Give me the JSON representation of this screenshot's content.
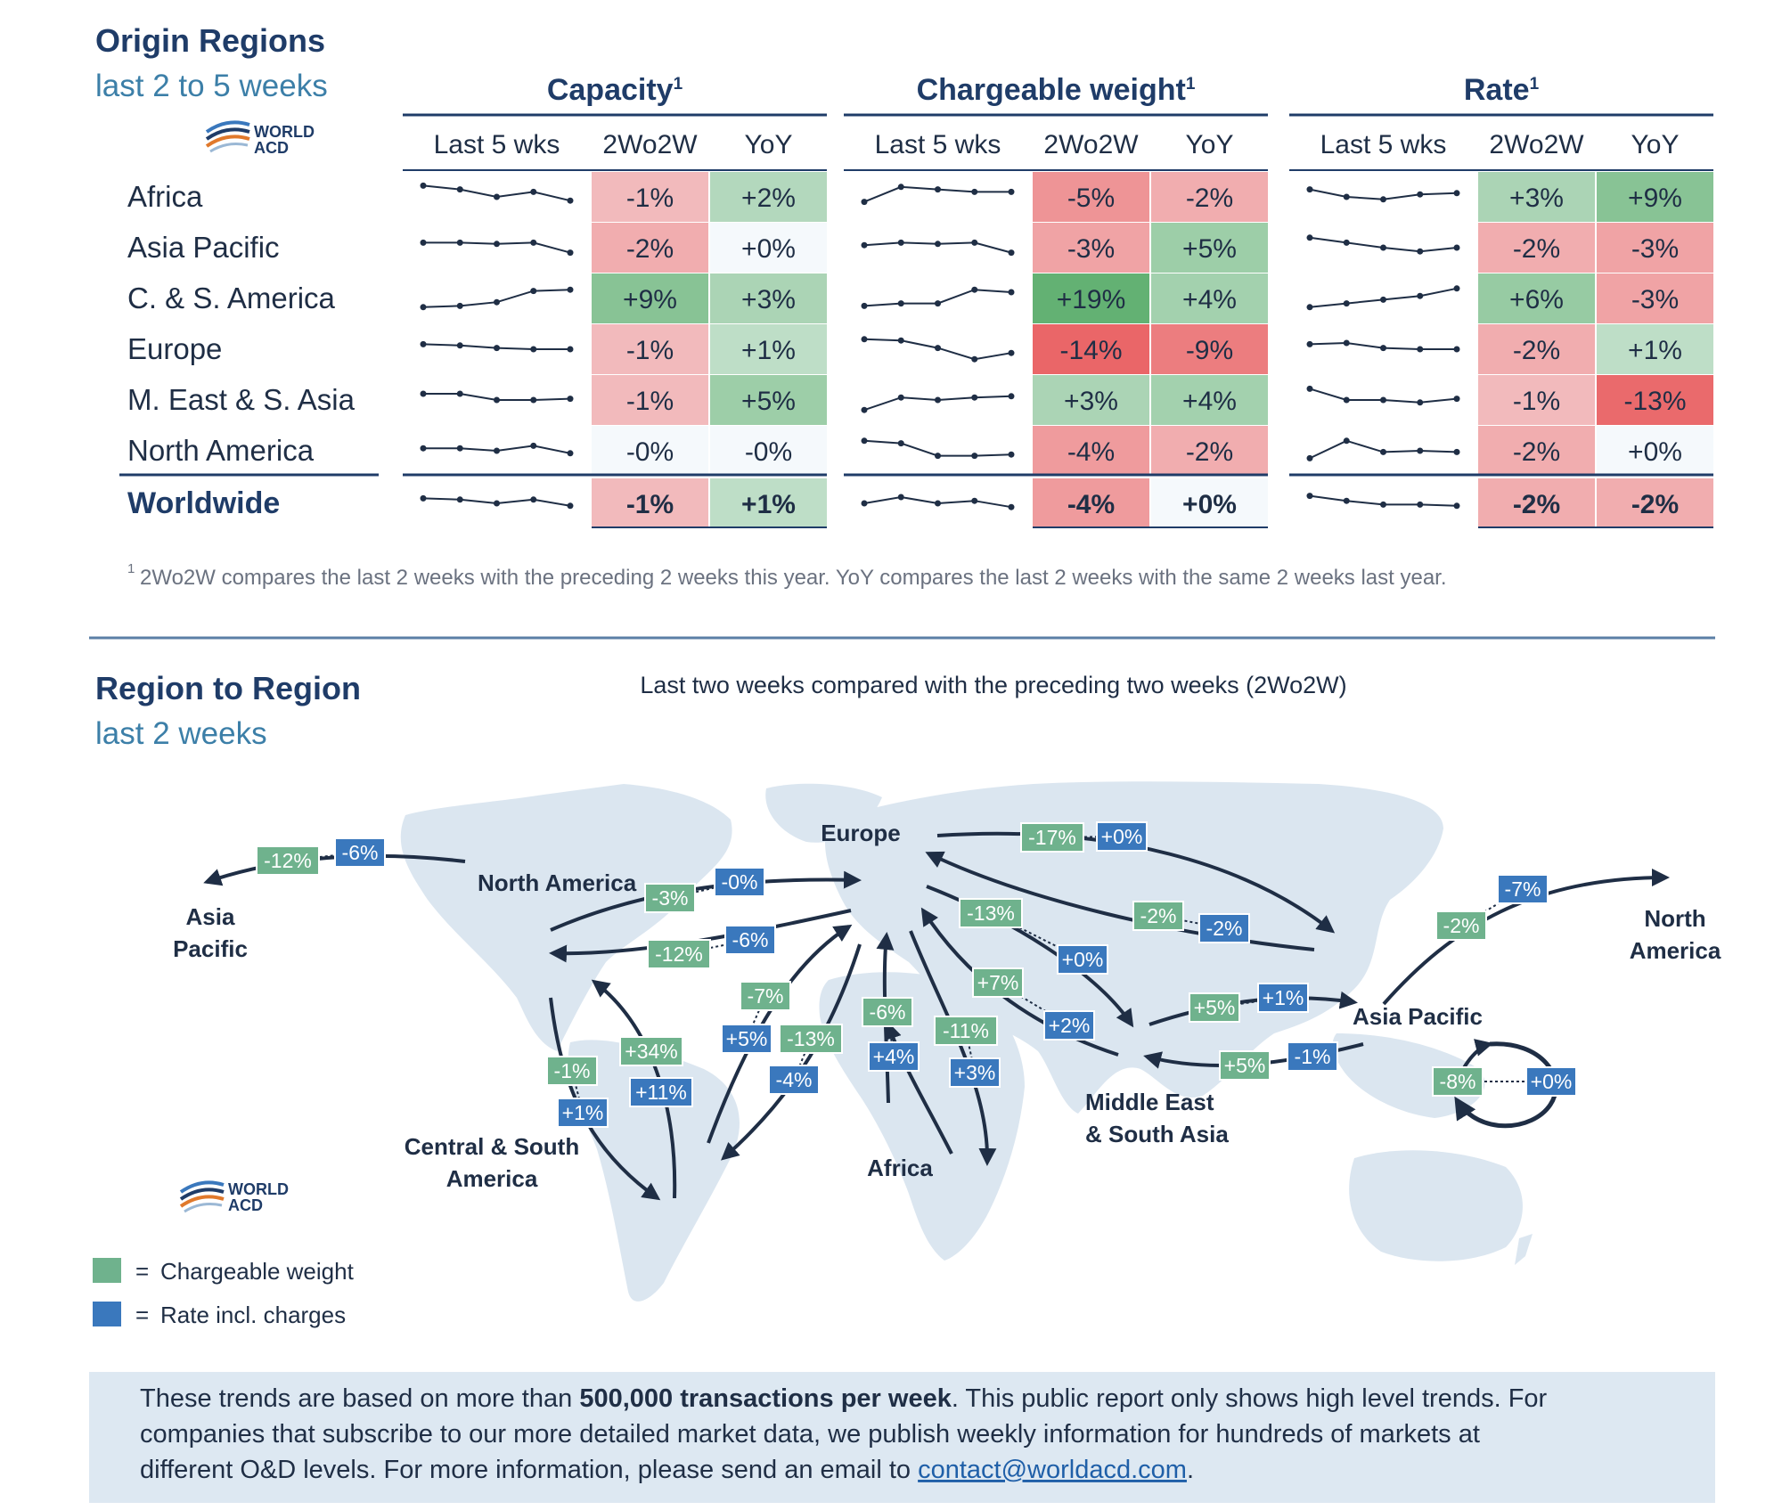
{
  "top": {
    "title": "Origin Regions",
    "subtitle": "last 2 to 5 weeks",
    "logo_text": [
      "WORLD",
      "ACD"
    ],
    "group_headers": [
      "Capacity",
      "Chargeable weight",
      "Rate"
    ],
    "group_superscript": "1",
    "col_headers": [
      "Last 5 wks",
      "2Wo2W",
      "YoY"
    ],
    "footnote_mark": "1",
    "footnote": "2Wo2W compares the last 2 weeks with the preceding 2 weeks this year. YoY compares the last 2 weeks with the same 2 weeks last year."
  },
  "colors": {
    "title": "#1f3c68",
    "subtitle": "#3c7fa8",
    "green_chargeable": "#6fb28d",
    "blue_rate": "#3a78bd",
    "map_land": "#dbe6f0",
    "arrow": "#1f2e45",
    "banner_bg": "#dde8f2",
    "link": "#1f5fa8"
  },
  "chart_data": [
    {
      "type": "table",
      "title": "Origin Regions",
      "subtitle": "last 2 to 5 weeks",
      "groups": [
        "Capacity",
        "Chargeable weight",
        "Rate"
      ],
      "columns": [
        "Last 5 wks",
        "2Wo2W",
        "YoY"
      ],
      "rows": [
        {
          "region": "Africa",
          "capacity": {
            "trend": [
              0.95,
              0.8,
              0.5,
              0.7,
              0.35
            ],
            "w2w": "-1%",
            "yoy": "+2%"
          },
          "chargeable": {
            "trend": [
              0.3,
              0.9,
              0.8,
              0.7,
              0.7
            ],
            "w2w": "-5%",
            "yoy": "-2%"
          },
          "rate": {
            "trend": [
              0.8,
              0.5,
              0.4,
              0.6,
              0.65
            ],
            "w2w": "+3%",
            "yoy": "+9%"
          }
        },
        {
          "region": "Asia Pacific",
          "capacity": {
            "trend": [
              0.7,
              0.7,
              0.65,
              0.7,
              0.3
            ],
            "w2w": "-2%",
            "yoy": "+0%"
          },
          "chargeable": {
            "trend": [
              0.6,
              0.7,
              0.65,
              0.7,
              0.3
            ],
            "w2w": "-3%",
            "yoy": "+5%"
          },
          "rate": {
            "trend": [
              0.9,
              0.7,
              0.5,
              0.35,
              0.5
            ],
            "w2w": "-2%",
            "yoy": "-3%"
          }
        },
        {
          "region": "C. & S. America",
          "capacity": {
            "trend": [
              0.15,
              0.2,
              0.35,
              0.8,
              0.85
            ],
            "w2w": "+9%",
            "yoy": "+3%"
          },
          "chargeable": {
            "trend": [
              0.2,
              0.3,
              0.3,
              0.85,
              0.75
            ],
            "w2w": "+19%",
            "yoy": "+4%"
          },
          "rate": {
            "trend": [
              0.15,
              0.3,
              0.45,
              0.6,
              0.9
            ],
            "w2w": "+6%",
            "yoy": "-3%"
          }
        },
        {
          "region": "Europe",
          "capacity": {
            "trend": [
              0.7,
              0.65,
              0.55,
              0.5,
              0.5
            ],
            "w2w": "-1%",
            "yoy": "+1%"
          },
          "chargeable": {
            "trend": [
              0.9,
              0.85,
              0.55,
              0.1,
              0.35
            ],
            "w2w": "-14%",
            "yoy": "-9%"
          },
          "rate": {
            "trend": [
              0.7,
              0.75,
              0.55,
              0.5,
              0.5
            ],
            "w2w": "-2%",
            "yoy": "+1%"
          }
        },
        {
          "region": "M. East & S. Asia",
          "capacity": {
            "trend": [
              0.75,
              0.75,
              0.5,
              0.5,
              0.55
            ],
            "w2w": "-1%",
            "yoy": "+5%"
          },
          "chargeable": {
            "trend": [
              0.1,
              0.6,
              0.5,
              0.6,
              0.65
            ],
            "w2w": "+3%",
            "yoy": "+4%"
          },
          "rate": {
            "trend": [
              0.95,
              0.5,
              0.5,
              0.4,
              0.55
            ],
            "w2w": "-1%",
            "yoy": "-13%"
          }
        },
        {
          "region": "North America",
          "capacity": {
            "trend": [
              0.6,
              0.6,
              0.5,
              0.7,
              0.4
            ],
            "w2w": "-0%",
            "yoy": "-0%"
          },
          "chargeable": {
            "trend": [
              0.9,
              0.8,
              0.3,
              0.3,
              0.35
            ],
            "w2w": "-4%",
            "yoy": "-2%"
          },
          "rate": {
            "trend": [
              0.2,
              0.9,
              0.45,
              0.5,
              0.45
            ],
            "w2w": "-2%",
            "yoy": "+0%"
          }
        },
        {
          "region": "Worldwide",
          "capacity": {
            "trend": [
              0.7,
              0.65,
              0.5,
              0.65,
              0.4
            ],
            "w2w": "-1%",
            "yoy": "+1%"
          },
          "chargeable": {
            "trend": [
              0.5,
              0.75,
              0.5,
              0.6,
              0.35
            ],
            "w2w": "-4%",
            "yoy": "+0%"
          },
          "rate": {
            "trend": [
              0.8,
              0.6,
              0.45,
              0.45,
              0.4
            ],
            "w2w": "-2%",
            "yoy": "-2%"
          }
        }
      ]
    },
    {
      "type": "flow_map",
      "title": "Region to Region",
      "subtitle": "last 2 weeks",
      "description": "Last two weeks compared with the preceding two weeks (2Wo2W)",
      "series": [
        "Chargeable weight",
        "Rate incl. charges"
      ],
      "regions": [
        "North America",
        "Europe",
        "Asia Pacific",
        "Africa",
        "Central & South America",
        "Middle East & South Asia"
      ],
      "flows": [
        {
          "from": "North America",
          "to": "Asia Pacific",
          "chargeable": "-12%",
          "rate": "-6%"
        },
        {
          "from": "North America",
          "to": "Europe",
          "chargeable": "-3%",
          "rate": "-0%"
        },
        {
          "from": "Europe",
          "to": "North America",
          "chargeable": "-12%",
          "rate": "-6%"
        },
        {
          "from": "Europe",
          "to": "Asia Pacific",
          "chargeable": "-17%",
          "rate": "+0%"
        },
        {
          "from": "Asia Pacific",
          "to": "Europe",
          "chargeable": "-2%",
          "rate": "-2%"
        },
        {
          "from": "Europe",
          "to": "Middle East & South Asia",
          "chargeable": "-13%",
          "rate": "+0%"
        },
        {
          "from": "Middle East & South Asia",
          "to": "Europe",
          "chargeable": "+7%",
          "rate": "+2%"
        },
        {
          "from": "Middle East & South Asia",
          "to": "Asia Pacific",
          "chargeable": "+5%",
          "rate": "+1%"
        },
        {
          "from": "Asia Pacific",
          "to": "Middle East & South Asia",
          "chargeable": "+5%",
          "rate": "-1%"
        },
        {
          "from": "Asia Pacific",
          "to": "North America",
          "chargeable": "-2%",
          "rate": "-7%"
        },
        {
          "from": "Asia Pacific",
          "to": "Asia Pacific",
          "chargeable": "-8%",
          "rate": "+0%"
        },
        {
          "from": "North America",
          "to": "Central & South America",
          "chargeable": "-1%",
          "rate": "+1%"
        },
        {
          "from": "Central & South America",
          "to": "North America",
          "chargeable": "+34%",
          "rate": "+11%"
        },
        {
          "from": "Central & South America",
          "to": "Europe",
          "chargeable": "-7%",
          "rate": "+5%"
        },
        {
          "from": "Europe",
          "to": "Central & South America",
          "chargeable": "-13%",
          "rate": "-4%"
        },
        {
          "from": "Africa",
          "to": "Europe",
          "chargeable": "-6%",
          "rate": "+4%"
        },
        {
          "from": "Europe",
          "to": "Africa",
          "chargeable": "-11%",
          "rate": "+3%"
        }
      ]
    }
  ],
  "bottom": {
    "title": "Region to Region",
    "subtitle": "last 2 weeks",
    "description": "Last two weeks compared with the preceding two weeks (2Wo2W)",
    "logo_text": [
      "WORLD",
      "ACD"
    ],
    "map_labels": {
      "north_america": "North America",
      "asia_pacific_left": [
        "Asia",
        "Pacific"
      ],
      "europe": "Europe",
      "north_america_right": [
        "North",
        "America"
      ],
      "asia_pacific": "Asia Pacific",
      "central_south_america": [
        "Central & South",
        "America"
      ],
      "africa": "Africa",
      "middle_east": [
        "Middle East",
        "& South Asia"
      ]
    },
    "legend": [
      {
        "label": "Chargeable weight",
        "color": "#6fb28d"
      },
      {
        "label": "Rate incl. charges",
        "color": "#3a78bd"
      }
    ],
    "legend_equals": "="
  },
  "banner": {
    "part1": "These trends are based on more than ",
    "bold": "500,000 transactions per week",
    "part2": ". This public report only shows high level trends. For",
    "line2": "companies that subscribe to our more detailed market data, we publish weekly information for hundreds of markets at",
    "line3_prefix": "different O&D levels. For more information, please send an email to ",
    "email": "contact@worldacd.com",
    "line3_suffix": "."
  }
}
